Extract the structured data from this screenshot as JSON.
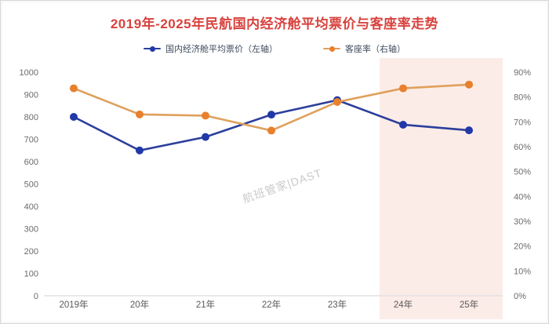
{
  "watermark": {
    "text": "航班管家|DAST",
    "plane_icon": "✈"
  },
  "chart_data": {
    "type": "line",
    "title": "2019年-2025年民航国内经济舱平均票价与客座率走势",
    "title_color": "#d8423e",
    "categories": [
      "2019年",
      "20年",
      "21年",
      "22年",
      "23年",
      "24年",
      "25年"
    ],
    "series": [
      {
        "name": "国内经济舱平均票价（左轴）",
        "axis": "left",
        "values": [
          800,
          650,
          710,
          810,
          875,
          765,
          740
        ],
        "line_color": "#2b3f9b",
        "marker_color": "#2138a8"
      },
      {
        "name": "客座率（右轴）",
        "axis": "right",
        "values": [
          83.5,
          73,
          72.5,
          66.5,
          78,
          83.5,
          85
        ],
        "values_unit": "%",
        "line_color": "#dfa05c",
        "marker_color": "#e8802c"
      }
    ],
    "left_axis": {
      "ticks": [
        0,
        100,
        200,
        300,
        400,
        500,
        600,
        700,
        800,
        900,
        1000
      ],
      "min": 0,
      "max": 1000,
      "label_color": "#6b6b6b"
    },
    "right_axis": {
      "tick_labels": [
        "0%",
        "10%",
        "20%",
        "30%",
        "40%",
        "50%",
        "60%",
        "70%",
        "80%",
        "90%"
      ],
      "ticks": [
        0,
        10,
        20,
        30,
        40,
        50,
        60,
        70,
        80,
        90
      ],
      "min": 0,
      "max": 90,
      "label_color": "#6b6b6b"
    },
    "x_axis": {
      "label_color": "#5a5a5a",
      "baseline_color": "#e2e2e2"
    },
    "forecast_region": {
      "start_category": "24年",
      "end_category": "25年",
      "fill": "#fcece8"
    },
    "legend_position": "top",
    "grid": false
  }
}
